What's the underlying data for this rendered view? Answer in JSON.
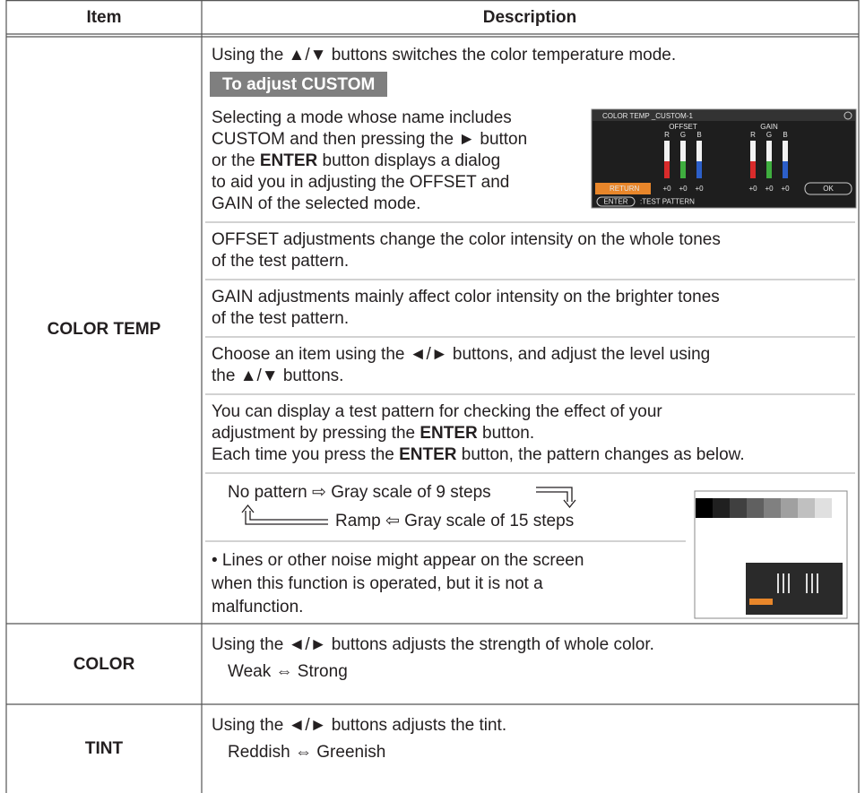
{
  "header": {
    "item": "Item",
    "description": "Description"
  },
  "rows": [
    {
      "item": "COLOR TEMP",
      "description": {
        "intro": "Using the ▲/▼ buttons switches the color temperature mode.",
        "subheading": "To adjust CUSTOM",
        "paragraphs": [
          [
            [
              "Selecting a mode whose name includes"
            ],
            [
              "CUSTOM and then pressing the ► button"
            ],
            [
              "or the ",
              "ENTER",
              " button displays a dialog"
            ],
            [
              "to aid you in adjusting the OFFSET and"
            ],
            [
              "GAIN of the selected mode."
            ]
          ],
          [
            [
              "OFFSET adjustments change the color intensity on the whole tones"
            ],
            [
              "of the test pattern."
            ]
          ],
          [
            [
              "GAIN adjustments mainly affect color intensity on the brighter tones"
            ],
            [
              "of the test pattern."
            ]
          ],
          [
            [
              "Choose an item using the ◄/► buttons, and adjust the level using"
            ],
            [
              "the ▲/▼ buttons."
            ]
          ],
          [
            [
              "You can display a test pattern for checking the effect of your"
            ],
            [
              "adjustment by pressing the ",
              "ENTER",
              " button."
            ],
            [
              "Each time you press the ",
              "ENTER",
              " button, the pattern changes as below."
            ]
          ]
        ],
        "flow": {
          "line1": "No pattern ⇨ Gray scale of 9 steps",
          "line2": "Ramp ⇦ Gray scale of 15 steps"
        },
        "note": [
          "• Lines or other noise might appear on the screen",
          "when this function is operated, but it is not a",
          "malfunction."
        ],
        "dialog": {
          "title": "COLOR TEMP _CUSTOM-1",
          "offset": "OFFSET",
          "gain": "GAIN",
          "offset_channels": [
            "R",
            "G",
            "B"
          ],
          "gain_channels": [
            "R",
            "G",
            "B"
          ],
          "offset_values": [
            "+0",
            "+0",
            "+0"
          ],
          "gain_values": [
            "+0",
            "+0",
            "+0"
          ],
          "return": "RETURN",
          "ok": "OK",
          "enter": "ENTER",
          "test_pattern": ":TEST PATTERN"
        }
      }
    },
    {
      "item": "COLOR",
      "description": {
        "intro": "Using the ◄/► buttons adjusts the strength of whole color.",
        "range": "Weak ⇔ Strong"
      }
    },
    {
      "item": "TINT",
      "description": {
        "intro": "Using the ◄/► buttons adjusts the tint.",
        "range": "Reddish ⇔ Greenish"
      }
    }
  ]
}
